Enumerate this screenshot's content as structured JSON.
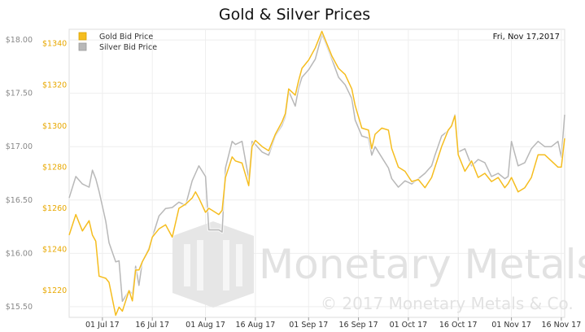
{
  "chart_data": {
    "type": "line",
    "title": "Gold & Silver Prices",
    "date_label": "Fri, Nov 17,2017",
    "x_ticks": [
      "01 Jul 17",
      "16 Jul 17",
      "01 Aug 17",
      "16 Aug 17",
      "01 Sep 17",
      "16 Sep 17",
      "01 Oct 17",
      "16 Oct 17",
      "01 Nov 17",
      "16 Nov 17"
    ],
    "y_left": {
      "ticks": [
        "$15.50",
        "$16.00",
        "$16.50",
        "$17.00",
        "$17.50",
        "$18.00"
      ],
      "values": [
        15.5,
        16.0,
        16.5,
        17.0,
        17.5,
        18.0
      ],
      "range": [
        15.4,
        18.1
      ]
    },
    "y_right": {
      "ticks": [
        "$1220",
        "$1240",
        "$1260",
        "$1280",
        "$1300",
        "$1320",
        "$1340"
      ],
      "values": [
        1220,
        1240,
        1260,
        1280,
        1300,
        1320,
        1340
      ],
      "range": [
        1207.0,
        1347.0
      ]
    },
    "x_range": [
      "2017-06-21",
      "2017-11-17"
    ],
    "series": [
      {
        "name": "Gold Bid Price",
        "color": "#f5bd1f",
        "axis": "right",
        "dates": [
          "2017-06-21",
          "2017-06-23",
          "2017-06-25",
          "2017-06-27",
          "2017-06-28",
          "2017-06-29",
          "2017-06-30",
          "2017-07-02",
          "2017-07-03",
          "2017-07-05",
          "2017-07-06",
          "2017-07-07",
          "2017-07-09",
          "2017-07-10",
          "2017-07-11",
          "2017-07-12",
          "2017-07-13",
          "2017-07-15",
          "2017-07-16",
          "2017-07-18",
          "2017-07-20",
          "2017-07-22",
          "2017-07-24",
          "2017-07-26",
          "2017-07-28",
          "2017-07-29",
          "2017-07-30",
          "2017-08-01",
          "2017-08-02",
          "2017-08-03",
          "2017-08-05",
          "2017-08-06",
          "2017-08-07",
          "2017-08-09",
          "2017-08-10",
          "2017-08-12",
          "2017-08-14",
          "2017-08-15",
          "2017-08-16",
          "2017-08-18",
          "2017-08-20",
          "2017-08-22",
          "2017-08-24",
          "2017-08-25",
          "2017-08-26",
          "2017-08-28",
          "2017-08-29",
          "2017-08-30",
          "2017-09-01",
          "2017-09-03",
          "2017-09-05",
          "2017-09-06",
          "2017-09-08",
          "2017-09-10",
          "2017-09-12",
          "2017-09-14",
          "2017-09-15",
          "2017-09-17",
          "2017-09-19",
          "2017-09-20",
          "2017-09-21",
          "2017-09-23",
          "2017-09-25",
          "2017-09-26",
          "2017-09-28",
          "2017-09-30",
          "2017-10-02",
          "2017-10-04",
          "2017-10-06",
          "2017-10-08",
          "2017-10-09",
          "2017-10-11",
          "2017-10-13",
          "2017-10-14",
          "2017-10-15",
          "2017-10-16",
          "2017-10-18",
          "2017-10-20",
          "2017-10-22",
          "2017-10-24",
          "2017-10-26",
          "2017-10-28",
          "2017-10-30",
          "2017-10-31",
          "2017-11-01",
          "2017-11-03",
          "2017-11-05",
          "2017-11-07",
          "2017-11-09",
          "2017-11-11",
          "2017-11-13",
          "2017-11-15",
          "2017-11-16",
          "2017-11-17"
        ],
        "values": [
          1247,
          1257,
          1249,
          1254,
          1247,
          1244,
          1227,
          1226,
          1224,
          1208,
          1212,
          1210,
          1220,
          1215,
          1230,
          1230,
          1234,
          1240,
          1246,
          1250,
          1252,
          1246,
          1260,
          1262,
          1265,
          1268,
          1265,
          1258,
          1260,
          1259,
          1257,
          1259,
          1275,
          1285,
          1283,
          1282,
          1271,
          1290,
          1293,
          1290,
          1288,
          1296,
          1302,
          1306,
          1318,
          1315,
          1322,
          1328,
          1332,
          1338,
          1346,
          1342,
          1334,
          1328,
          1325,
          1318,
          1310,
          1299,
          1298,
          1289,
          1296,
          1299,
          1298,
          1289,
          1280,
          1278,
          1273,
          1274,
          1270,
          1275,
          1280,
          1290,
          1298,
          1300,
          1305,
          1286,
          1278,
          1283,
          1275,
          1277,
          1273,
          1275,
          1270,
          1272,
          1275,
          1268,
          1270,
          1275,
          1286,
          1286,
          1283,
          1280,
          1280,
          1294
        ]
      },
      {
        "name": "Silver Bid Price",
        "color": "#b8b8b8",
        "axis": "left",
        "dates": [
          "2017-06-21",
          "2017-06-23",
          "2017-06-25",
          "2017-06-27",
          "2017-06-28",
          "2017-06-29",
          "2017-06-30",
          "2017-07-02",
          "2017-07-03",
          "2017-07-05",
          "2017-07-06",
          "2017-07-07",
          "2017-07-09",
          "2017-07-10",
          "2017-07-11",
          "2017-07-12",
          "2017-07-13",
          "2017-07-15",
          "2017-07-16",
          "2017-07-18",
          "2017-07-20",
          "2017-07-22",
          "2017-07-24",
          "2017-07-26",
          "2017-07-28",
          "2017-07-29",
          "2017-07-30",
          "2017-08-01",
          "2017-08-02",
          "2017-08-03",
          "2017-08-05",
          "2017-08-06",
          "2017-08-07",
          "2017-08-09",
          "2017-08-10",
          "2017-08-12",
          "2017-08-14",
          "2017-08-15",
          "2017-08-16",
          "2017-08-18",
          "2017-08-20",
          "2017-08-22",
          "2017-08-24",
          "2017-08-25",
          "2017-08-26",
          "2017-08-28",
          "2017-08-29",
          "2017-08-30",
          "2017-09-01",
          "2017-09-03",
          "2017-09-05",
          "2017-09-06",
          "2017-09-08",
          "2017-09-10",
          "2017-09-12",
          "2017-09-14",
          "2017-09-15",
          "2017-09-17",
          "2017-09-19",
          "2017-09-20",
          "2017-09-21",
          "2017-09-23",
          "2017-09-25",
          "2017-09-26",
          "2017-09-28",
          "2017-09-30",
          "2017-10-02",
          "2017-10-04",
          "2017-10-06",
          "2017-10-08",
          "2017-10-09",
          "2017-10-11",
          "2017-10-13",
          "2017-10-14",
          "2017-10-15",
          "2017-10-16",
          "2017-10-18",
          "2017-10-20",
          "2017-10-22",
          "2017-10-24",
          "2017-10-26",
          "2017-10-28",
          "2017-10-30",
          "2017-10-31",
          "2017-11-01",
          "2017-11-03",
          "2017-11-05",
          "2017-11-07",
          "2017-11-09",
          "2017-11-11",
          "2017-11-13",
          "2017-11-15",
          "2017-11-16",
          "2017-11-17"
        ],
        "values": [
          16.52,
          16.72,
          16.65,
          16.62,
          16.78,
          16.7,
          16.58,
          16.3,
          16.1,
          15.92,
          15.93,
          15.55,
          15.65,
          15.62,
          15.88,
          15.7,
          15.92,
          16.05,
          16.15,
          16.35,
          16.42,
          16.43,
          16.48,
          16.45,
          16.68,
          16.75,
          16.82,
          16.72,
          16.22,
          16.22,
          16.22,
          16.2,
          16.8,
          17.05,
          17.02,
          17.05,
          16.7,
          17.05,
          17.02,
          16.95,
          16.92,
          17.1,
          17.2,
          17.28,
          17.52,
          17.38,
          17.55,
          17.65,
          17.72,
          17.82,
          18.05,
          17.98,
          17.82,
          17.65,
          17.58,
          17.45,
          17.25,
          17.1,
          17.08,
          16.92,
          17.0,
          16.9,
          16.8,
          16.7,
          16.62,
          16.68,
          16.65,
          16.7,
          16.75,
          16.82,
          16.92,
          17.1,
          17.15,
          17.2,
          17.3,
          16.95,
          16.98,
          16.82,
          16.88,
          16.85,
          16.72,
          16.75,
          16.7,
          16.72,
          17.05,
          16.82,
          16.85,
          16.98,
          17.05,
          17.0,
          17.0,
          17.05,
          16.9,
          17.3
        ]
      }
    ],
    "grid": true,
    "legend_position": "top-left",
    "watermark": "Monetary Metals",
    "copyright": "© 2017 Monetary Metals & Co."
  }
}
